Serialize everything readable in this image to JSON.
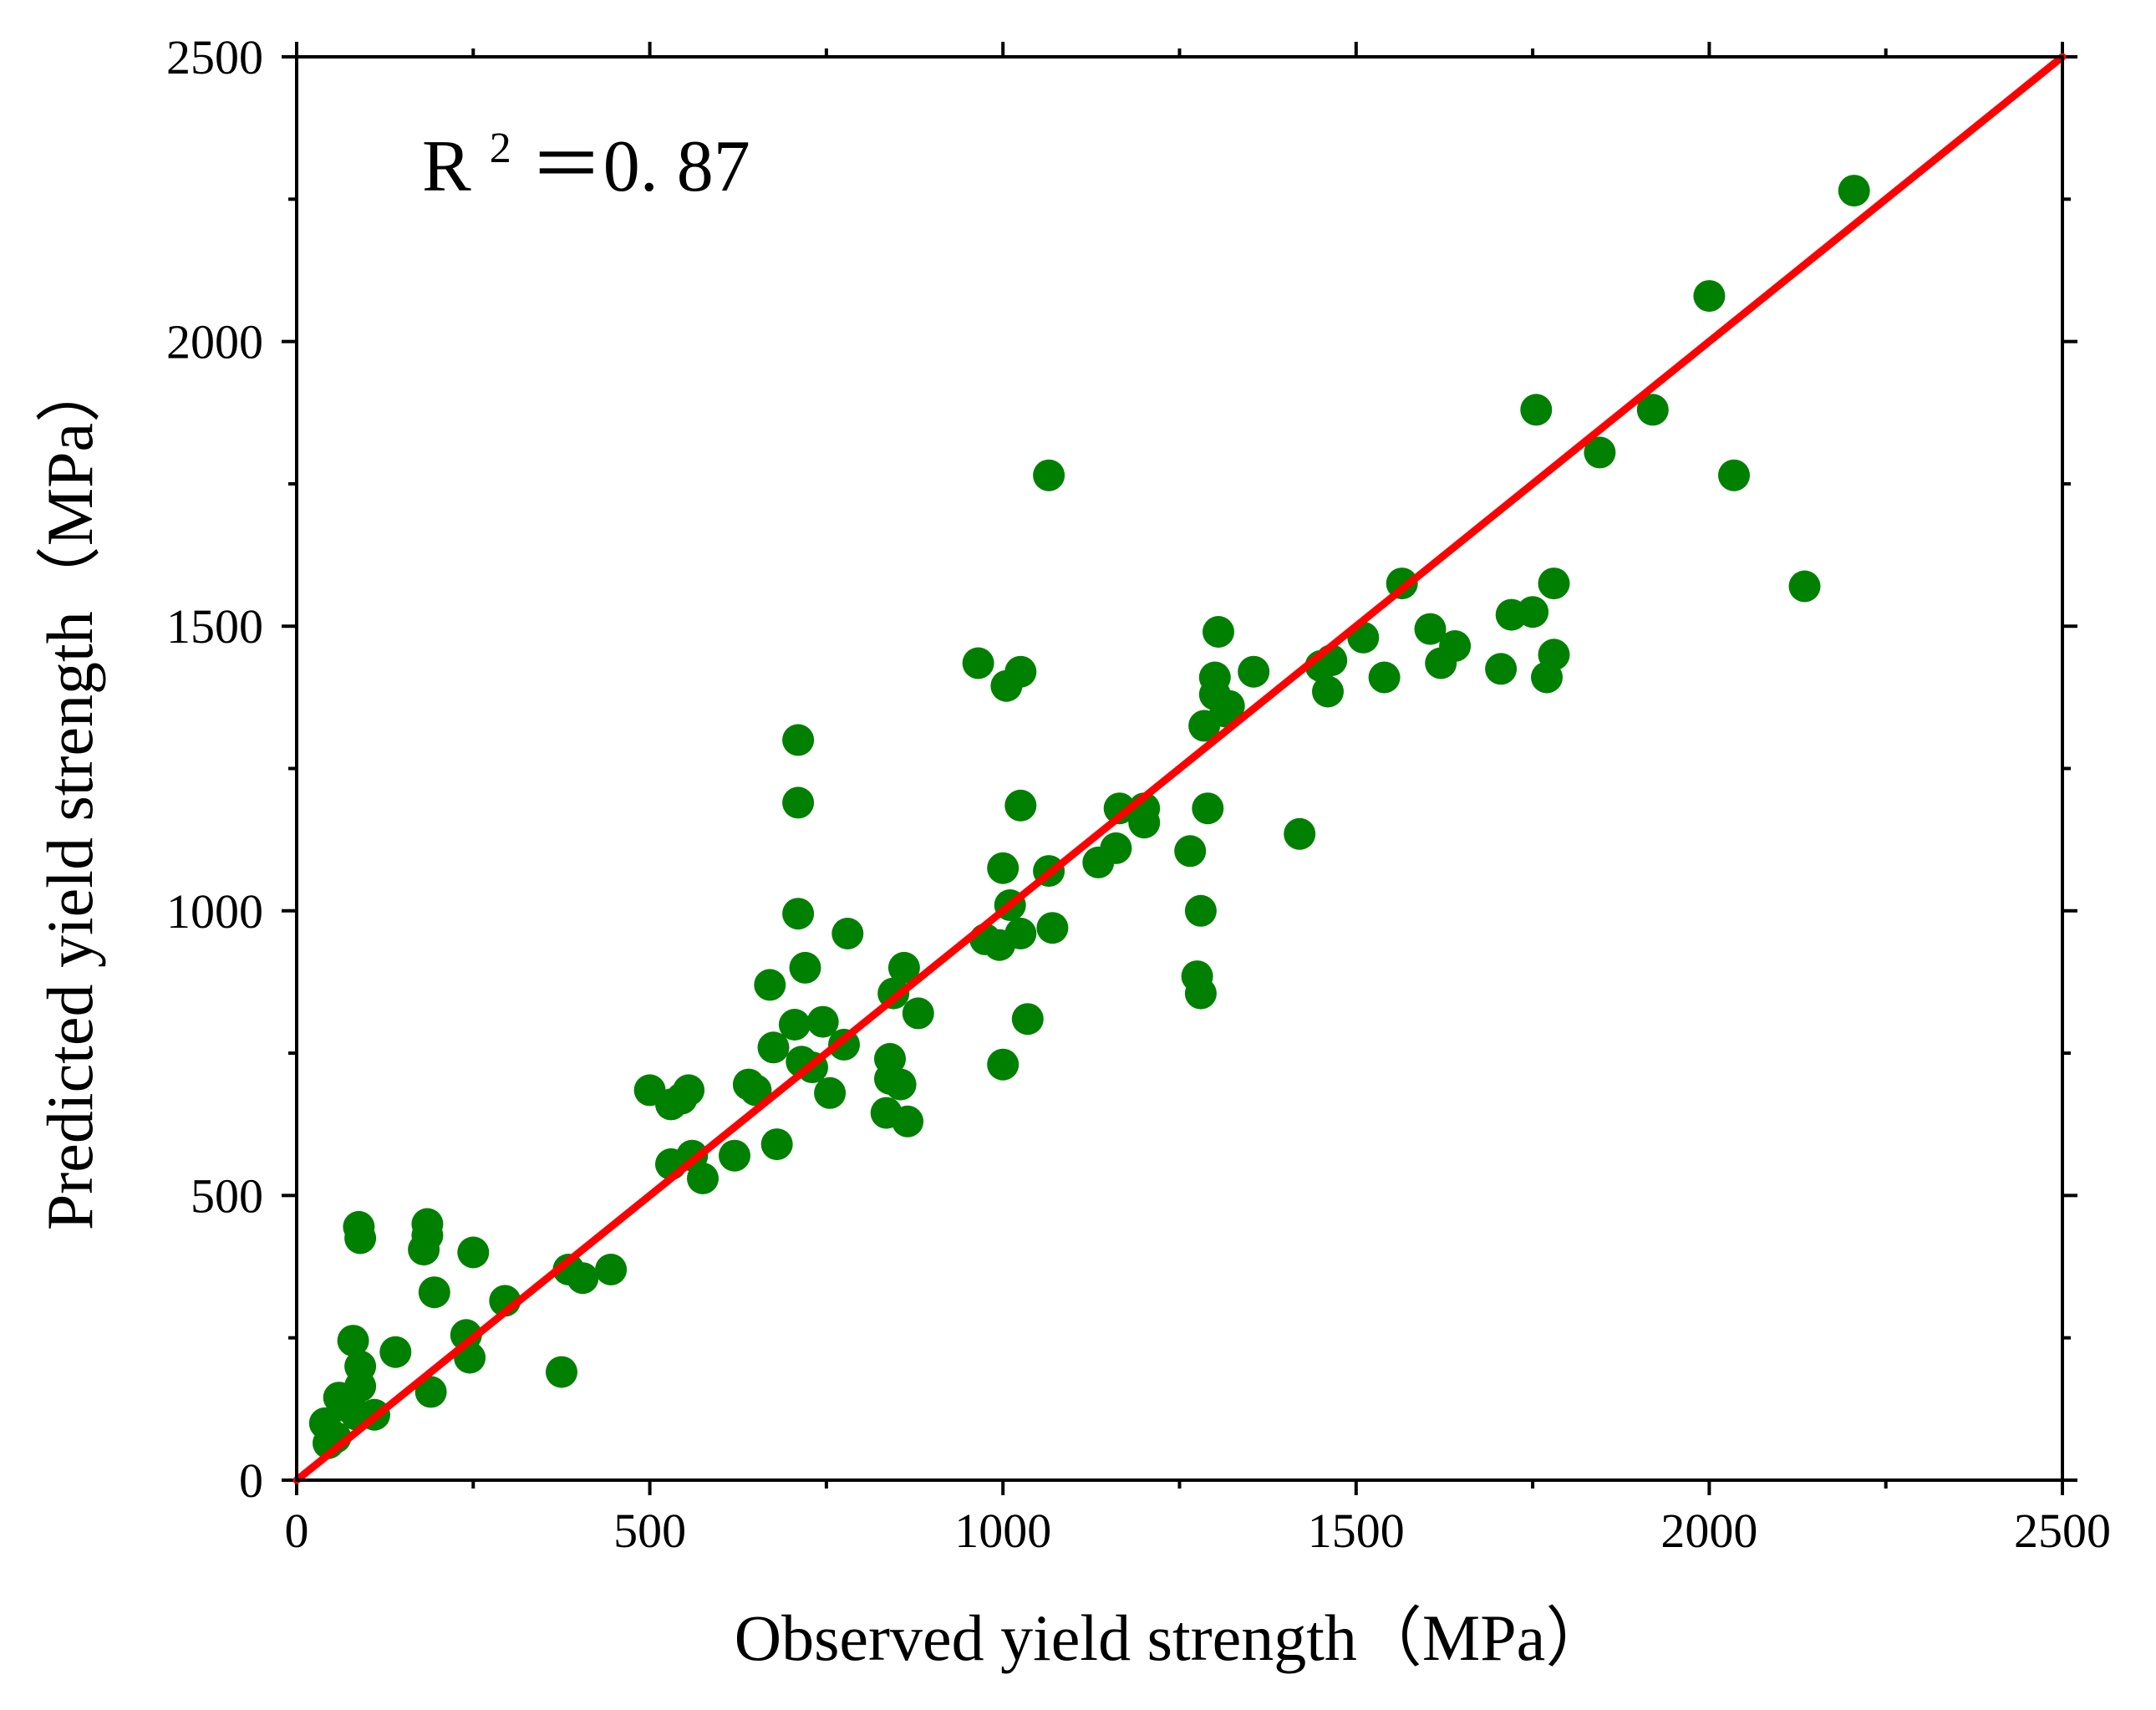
{
  "chart_data": {
    "type": "scatter",
    "title": "",
    "xlabel": "Observed yield strength（MPa）",
    "ylabel": "Predicted yield strength（MPa）",
    "xlim": [
      0,
      2500
    ],
    "ylim": [
      0,
      2500
    ],
    "xticks": [
      "0",
      "500",
      "1000",
      "1500",
      "2000",
      "2500"
    ],
    "yticks": [
      "0",
      "500",
      "1000",
      "1500",
      "2000",
      "2500"
    ],
    "grid": false,
    "annotation": {
      "base": "R",
      "sup": "2",
      "rest": "＝0. 87"
    },
    "colors": {
      "points": "#008000",
      "fit_line": "#ff0000",
      "axes": "#000000"
    },
    "fit_line": {
      "name": "y = x",
      "x": [
        0,
        2500
      ],
      "y": [
        0,
        2500
      ]
    },
    "series": [
      {
        "name": "samples",
        "points": [
          [
            40,
            100
          ],
          [
            45,
            65
          ],
          [
            55,
            75
          ],
          [
            60,
            145
          ],
          [
            70,
            130
          ],
          [
            80,
            245
          ],
          [
            85,
            115
          ],
          [
            90,
            200
          ],
          [
            90,
            165
          ],
          [
            110,
            115
          ],
          [
            88,
            445
          ],
          [
            90,
            425
          ],
          [
            140,
            225
          ],
          [
            180,
            405
          ],
          [
            185,
            430
          ],
          [
            185,
            450
          ],
          [
            190,
            155
          ],
          [
            195,
            330
          ],
          [
            240,
            255
          ],
          [
            245,
            215
          ],
          [
            250,
            400
          ],
          [
            295,
            315
          ],
          [
            375,
            190
          ],
          [
            385,
            370
          ],
          [
            405,
            355
          ],
          [
            445,
            370
          ],
          [
            500,
            685
          ],
          [
            530,
            660
          ],
          [
            545,
            670
          ],
          [
            555,
            685
          ],
          [
            530,
            555
          ],
          [
            560,
            570
          ],
          [
            575,
            530
          ],
          [
            620,
            570
          ],
          [
            640,
            695
          ],
          [
            650,
            685
          ],
          [
            670,
            870
          ],
          [
            675,
            760
          ],
          [
            680,
            590
          ],
          [
            705,
            800
          ],
          [
            710,
            995
          ],
          [
            710,
            1190
          ],
          [
            710,
            1300
          ],
          [
            715,
            735
          ],
          [
            720,
            900
          ],
          [
            730,
            725
          ],
          [
            745,
            805
          ],
          [
            755,
            680
          ],
          [
            775,
            765
          ],
          [
            780,
            960
          ],
          [
            835,
            645
          ],
          [
            840,
            740
          ],
          [
            840,
            705
          ],
          [
            845,
            855
          ],
          [
            855,
            695
          ],
          [
            860,
            900
          ],
          [
            865,
            630
          ],
          [
            880,
            820
          ],
          [
            965,
            1435
          ],
          [
            975,
            950
          ],
          [
            995,
            940
          ],
          [
            1000,
            1075
          ],
          [
            1000,
            730
          ],
          [
            1005,
            1395
          ],
          [
            1010,
            1010
          ],
          [
            1025,
            960
          ],
          [
            1025,
            1420
          ],
          [
            1025,
            1185
          ],
          [
            1035,
            810
          ],
          [
            1065,
            1765
          ],
          [
            1065,
            1070
          ],
          [
            1070,
            970
          ],
          [
            1135,
            1085
          ],
          [
            1160,
            1110
          ],
          [
            1165,
            1180
          ],
          [
            1200,
            1180
          ],
          [
            1200,
            1155
          ],
          [
            1265,
            1105
          ],
          [
            1275,
            885
          ],
          [
            1280,
            1000
          ],
          [
            1280,
            855
          ],
          [
            1285,
            1325
          ],
          [
            1290,
            1180
          ],
          [
            1300,
            1410
          ],
          [
            1300,
            1380
          ],
          [
            1305,
            1490
          ],
          [
            1315,
            1350
          ],
          [
            1320,
            1360
          ],
          [
            1355,
            1420
          ],
          [
            1420,
            1135
          ],
          [
            1450,
            1430
          ],
          [
            1460,
            1385
          ],
          [
            1465,
            1440
          ],
          [
            1510,
            1480
          ],
          [
            1540,
            1410
          ],
          [
            1565,
            1575
          ],
          [
            1605,
            1495
          ],
          [
            1620,
            1435
          ],
          [
            1640,
            1465
          ],
          [
            1705,
            1425
          ],
          [
            1720,
            1520
          ],
          [
            1750,
            1525
          ],
          [
            1755,
            1880
          ],
          [
            1770,
            1410
          ],
          [
            1780,
            1450
          ],
          [
            1780,
            1575
          ],
          [
            1845,
            1805
          ],
          [
            1920,
            1880
          ],
          [
            2000,
            2080
          ],
          [
            2035,
            1765
          ],
          [
            2135,
            1570
          ],
          [
            2205,
            2265
          ]
        ]
      }
    ]
  }
}
